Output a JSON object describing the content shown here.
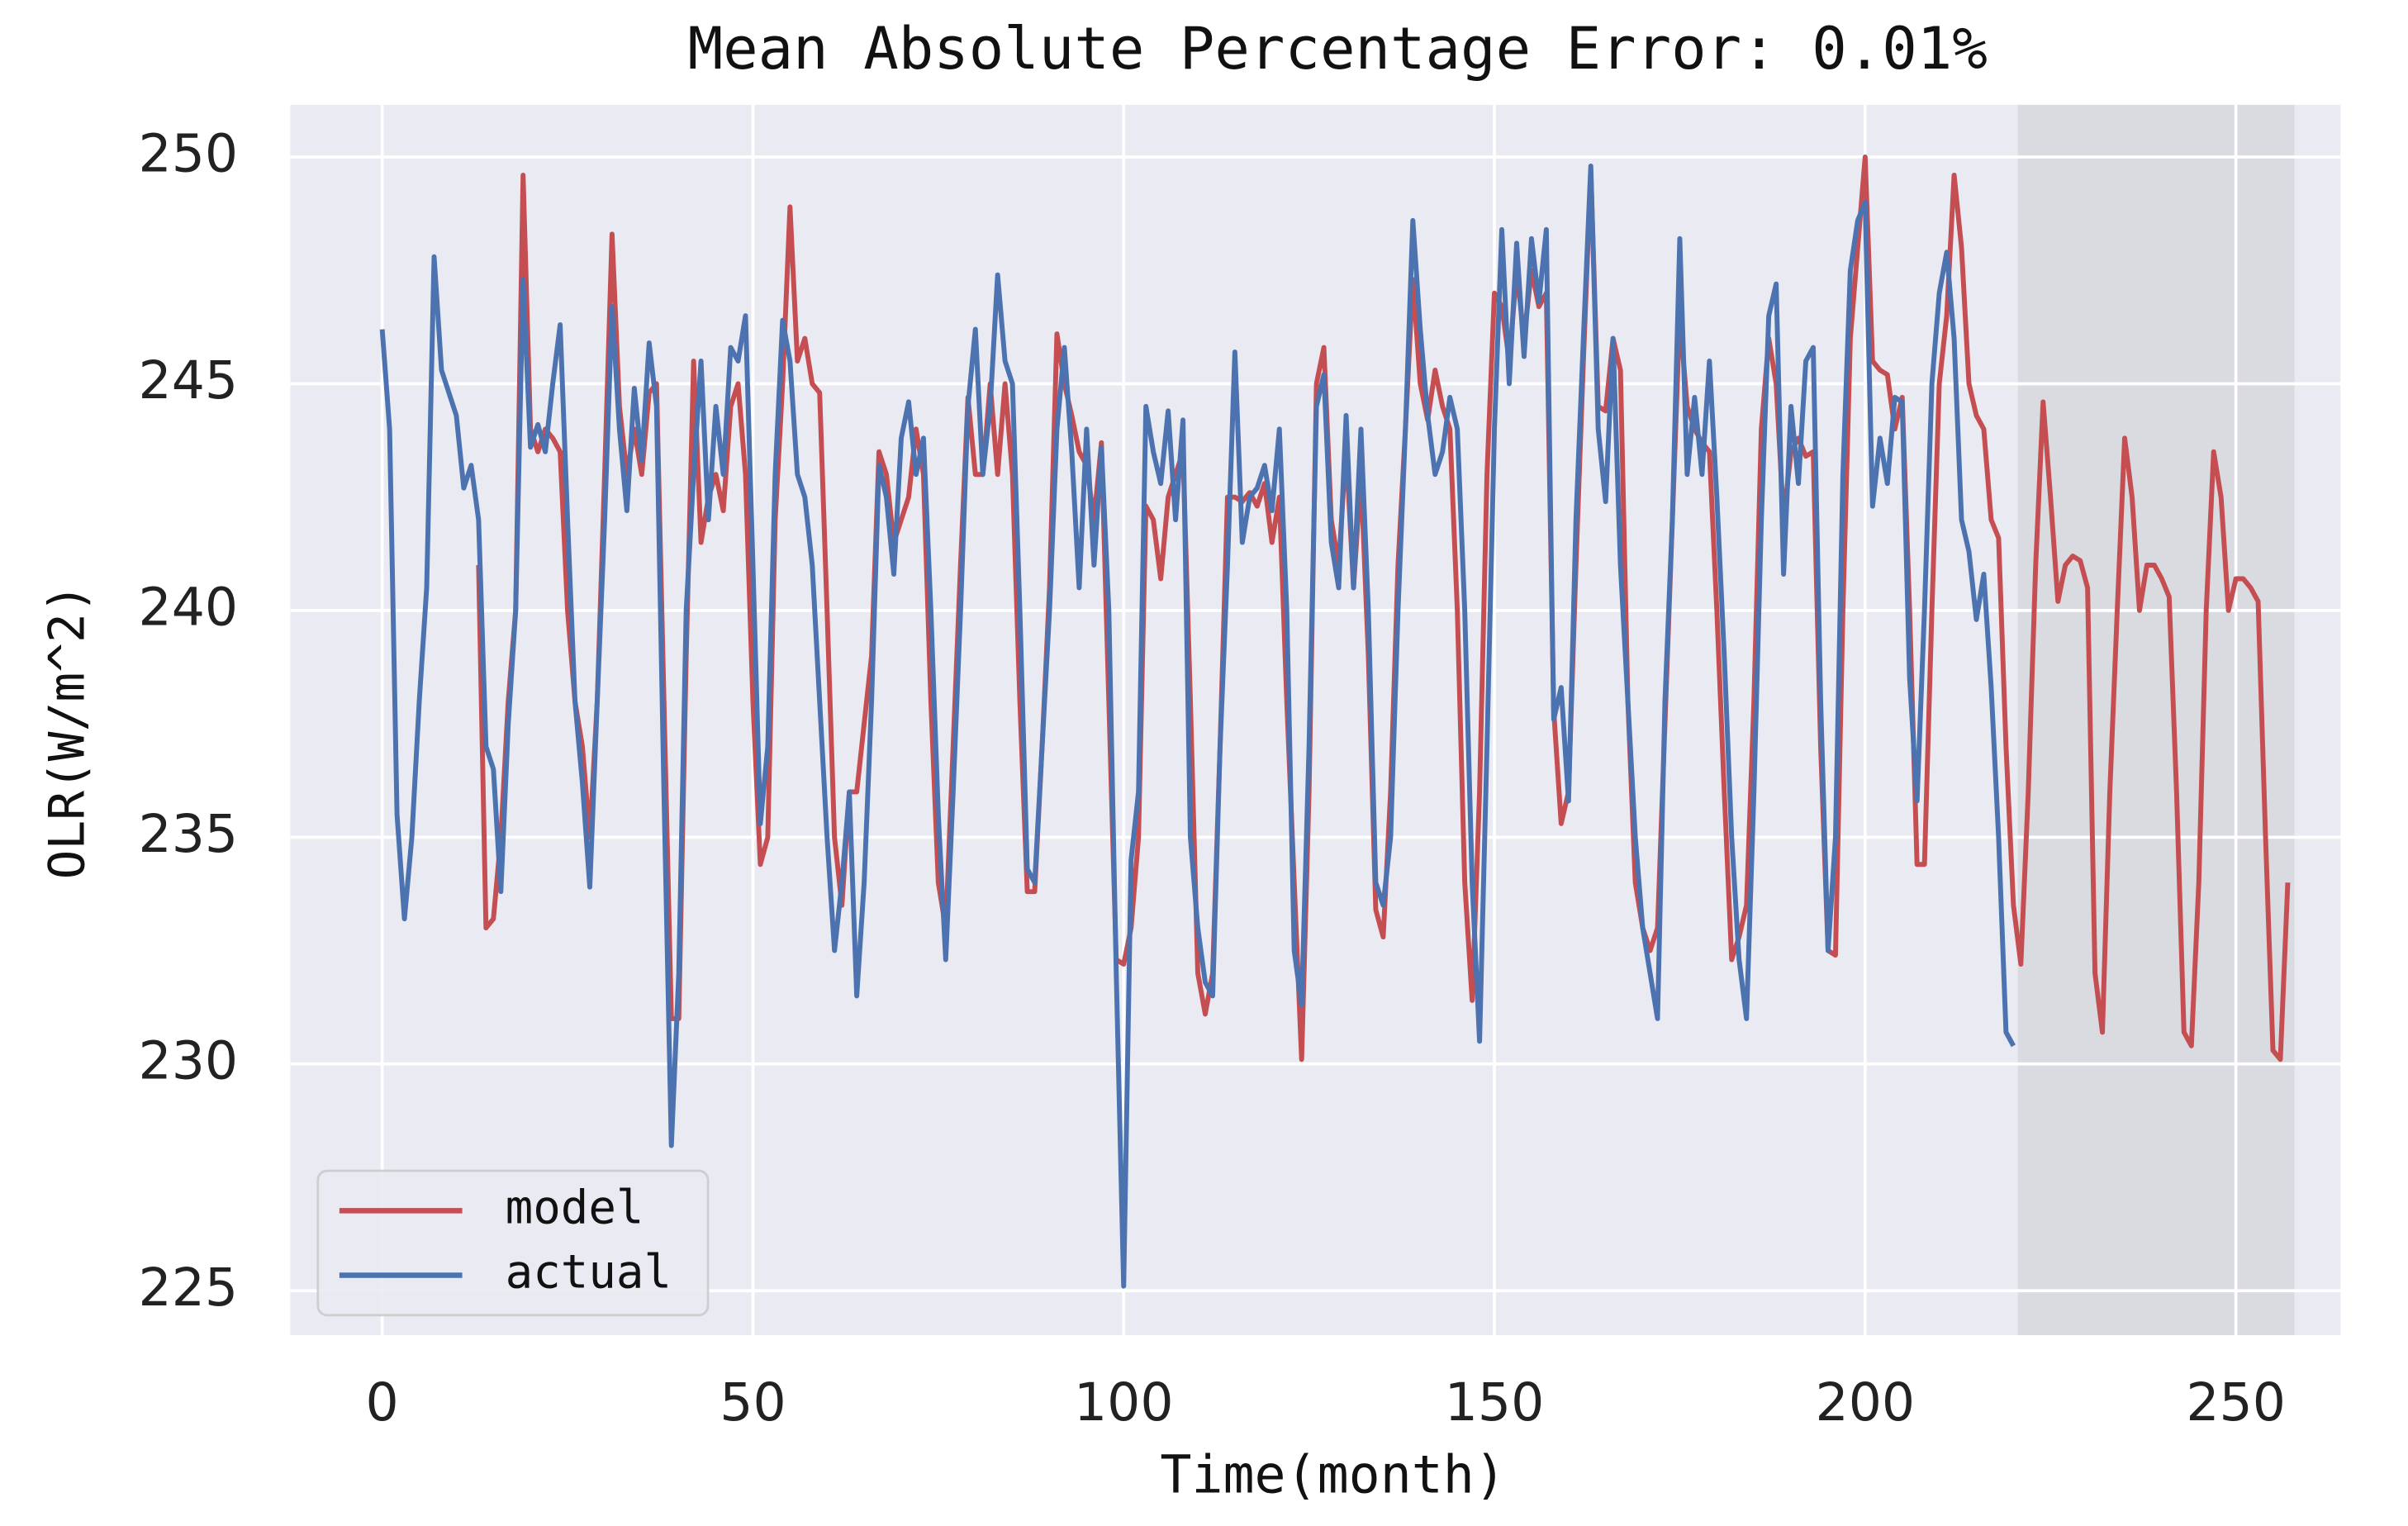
{
  "chart_data": {
    "type": "line",
    "title": "Mean Absolute Percentage Error: 0.01%",
    "xlabel": "Time(month)",
    "ylabel": "OLR(W/m^2)",
    "xlim": [
      -12.4,
      264.1
    ],
    "ylim": [
      224.02,
      251.15
    ],
    "xticks": [
      0,
      50,
      100,
      150,
      200,
      250
    ],
    "yticks": [
      225,
      230,
      235,
      240,
      245,
      250
    ],
    "grid": true,
    "legend": "lower left",
    "shaded_region": [
      220.6,
      257.9
    ],
    "x": [
      0,
      1,
      2,
      3,
      4,
      5,
      6,
      7,
      8,
      9,
      10,
      11,
      12,
      13,
      14,
      15,
      16,
      17,
      18,
      19,
      20,
      21,
      22,
      23,
      24,
      25,
      26,
      27,
      28,
      29,
      30,
      31,
      32,
      33,
      34,
      35,
      36,
      37,
      38,
      39,
      40,
      41,
      42,
      43,
      44,
      45,
      46,
      47,
      48,
      49,
      50,
      51,
      52,
      53,
      54,
      55,
      56,
      57,
      58,
      59,
      60,
      61,
      62,
      63,
      64,
      65,
      66,
      67,
      68,
      69,
      70,
      71,
      72,
      73,
      74,
      75,
      76,
      77,
      78,
      79,
      80,
      81,
      82,
      83,
      84,
      85,
      86,
      87,
      88,
      89,
      90,
      91,
      92,
      93,
      94,
      95,
      96,
      97,
      98,
      99,
      100,
      101,
      102,
      103,
      104,
      105,
      106,
      107,
      108,
      109,
      110,
      111,
      112,
      113,
      114,
      115,
      116,
      117,
      118,
      119,
      120,
      121,
      122,
      123,
      124,
      125,
      126,
      127,
      128,
      129,
      130,
      131,
      132,
      133,
      134,
      135,
      136,
      137,
      138,
      139,
      140,
      141,
      142,
      143,
      144,
      145,
      146,
      147,
      148,
      149,
      150,
      151,
      152,
      153,
      154,
      155,
      156,
      157,
      158,
      159,
      160,
      161,
      162,
      163,
      164,
      165,
      166,
      167,
      168,
      169,
      170,
      171,
      172,
      173,
      174,
      175,
      176,
      177,
      178,
      179,
      180,
      181,
      182,
      183,
      184,
      185,
      186,
      187,
      188,
      189,
      190,
      191,
      192,
      193,
      194,
      195,
      196,
      197,
      198,
      199,
      200,
      201,
      202,
      203,
      204,
      205,
      206,
      207,
      208,
      209,
      210,
      211,
      212,
      213,
      214,
      215,
      216,
      217,
      218,
      219,
      220,
      221,
      222,
      223,
      224,
      225,
      226,
      227,
      228,
      229,
      230,
      231,
      232,
      233,
      234,
      235,
      236,
      237,
      238,
      239,
      240,
      241,
      242,
      243,
      244,
      245,
      246,
      247,
      248,
      249,
      250,
      251,
      252,
      253,
      254,
      255,
      256,
      257
    ],
    "series": [
      {
        "name": "model",
        "color": "#c44e52",
        "values": [
          null,
          null,
          null,
          null,
          null,
          null,
          null,
          null,
          null,
          null,
          null,
          null,
          null,
          241,
          233,
          233.2,
          235,
          238,
          240,
          249.6,
          244,
          243.5,
          244,
          243.8,
          243.5,
          240,
          238,
          237,
          235,
          238,
          243,
          248.3,
          244.5,
          243,
          244,
          243,
          244.8,
          245,
          238,
          231,
          231,
          239,
          245.5,
          241.5,
          242.5,
          243,
          242.2,
          244.5,
          245,
          243,
          238,
          234.4,
          235,
          242,
          245,
          248.9,
          245.5,
          246,
          245,
          244.8,
          240,
          235,
          233.5,
          236,
          236,
          237.5,
          239,
          243.5,
          243,
          241.5,
          242,
          242.5,
          244,
          243,
          238,
          234,
          233,
          237,
          241,
          244.7,
          243,
          243,
          245,
          243,
          245,
          243,
          238,
          233.8,
          233.8,
          237,
          240.5,
          246.1,
          245,
          244.3,
          243.5,
          243.2,
          242,
          243.7,
          238,
          232.3,
          232.2,
          233,
          235,
          242.3,
          242,
          240.7,
          242.5,
          243,
          243.5,
          238,
          232,
          231.1,
          232,
          237,
          242.5,
          242.5,
          242.4,
          242.6,
          242.3,
          242.8,
          241.5,
          242.5,
          238,
          234,
          230.1,
          236,
          245,
          245.8,
          242,
          241,
          243.6,
          240.5,
          243,
          239,
          233.4,
          232.8,
          236,
          241,
          244,
          247.3,
          245,
          244.2,
          245.3,
          244.5,
          244,
          240,
          234,
          231.4,
          236,
          243,
          247,
          246.7,
          245.5,
          247.5,
          246,
          247.5,
          246.7,
          247,
          237.8,
          235.3,
          236,
          241,
          245.5,
          249.7,
          244.5,
          244.4,
          246,
          245.3,
          238,
          234,
          233,
          232.5,
          233,
          237.5,
          242,
          246.5,
          244.5,
          244,
          243.7,
          243.5,
          240,
          236,
          232.3,
          232.8,
          233.5,
          238,
          244,
          246,
          245,
          242,
          243.5,
          243.8,
          243.4,
          243.5,
          237,
          232.5,
          232.4,
          240,
          246,
          248,
          250,
          245.5,
          245.3,
          245.2,
          244,
          244.7,
          240,
          234.4,
          234.4,
          240,
          245,
          246.5,
          249.6,
          248,
          245,
          244.3,
          244,
          242,
          241.6,
          237,
          233.5,
          232.2,
          236,
          241,
          244.6,
          242.5,
          240.2,
          241,
          241.2,
          241.1,
          240.5,
          232,
          230.7,
          236,
          240,
          243.8,
          242.5,
          240,
          241,
          241,
          240.7,
          240.3,
          236,
          230.7,
          230.4,
          234,
          240,
          243.5,
          242.5,
          240,
          240.7,
          240.7,
          240.5,
          240.2,
          235,
          230.3,
          230.1,
          234
        ]
      },
      {
        "name": "actual",
        "color": "#4c72b0",
        "values": [
          246.2,
          244,
          235.5,
          233.2,
          235,
          238,
          240.5,
          247.8,
          245.3,
          244.8,
          244.3,
          242.7,
          243.2,
          242,
          237,
          236.5,
          233.8,
          237.5,
          240,
          247.3,
          243.6,
          244.1,
          243.5,
          245,
          246.3,
          242,
          238,
          236.2,
          233.9,
          238,
          242,
          246.7,
          244,
          242.2,
          244.9,
          243.3,
          245.9,
          244.5,
          236,
          228.2,
          232,
          240,
          243,
          245.5,
          242,
          244.5,
          243,
          245.8,
          245.5,
          246.5,
          241,
          235.3,
          237,
          243,
          246.4,
          245.5,
          243,
          242.5,
          241,
          238,
          235,
          232.5,
          234,
          236,
          231.5,
          234,
          238,
          243.2,
          242.5,
          240.8,
          243.8,
          244.6,
          243,
          243.8,
          240,
          235.5,
          232.3,
          236,
          240,
          244.5,
          246.2,
          243,
          244.5,
          247.4,
          245.5,
          245,
          240,
          234.3,
          234,
          237,
          240,
          244,
          245.8,
          243.5,
          240.5,
          244,
          241,
          243.6,
          240,
          232,
          225.1,
          234.5,
          236,
          244.5,
          243.5,
          242.8,
          244.4,
          242,
          244.2,
          235,
          233,
          231.8,
          231.5,
          237,
          241,
          245.7,
          241.5,
          242.5,
          242.7,
          243.2,
          242.2,
          244,
          240,
          232.5,
          231.3,
          237,
          244.5,
          245.2,
          241.5,
          240.5,
          244.3,
          240.5,
          244,
          240,
          234,
          233.5,
          235,
          240,
          244,
          248.6,
          246.2,
          244.3,
          243,
          243.5,
          244.7,
          244,
          240,
          234,
          230.5,
          237,
          244,
          248.4,
          245,
          248.1,
          245.6,
          248.2,
          246.8,
          248.4,
          237.6,
          238.3,
          235.8,
          242,
          246,
          249.8,
          244,
          242.4,
          246,
          241,
          238,
          235,
          233,
          232,
          231,
          238,
          242,
          248.2,
          243,
          244.7,
          243,
          245.5,
          242.5,
          239,
          235,
          232.3,
          231,
          236,
          242,
          246.5,
          247.2,
          240.8,
          244.5,
          242.8,
          245.5,
          245.8,
          238,
          232.5,
          235,
          243,
          247.5,
          248.6,
          249,
          242.3,
          243.8,
          242.8,
          244.7,
          244.6,
          238.5,
          235.8,
          240,
          245,
          247,
          247.9,
          246,
          242,
          241.3,
          239.8,
          240.8,
          238.3,
          235,
          230.7,
          230.4,
          null,
          null,
          null,
          null,
          null,
          null,
          null,
          null,
          null,
          null,
          null,
          null,
          null,
          null,
          null,
          null,
          null,
          null,
          null,
          null,
          null,
          null,
          null,
          null,
          null,
          null,
          null,
          null,
          null,
          null,
          null,
          null,
          null,
          null,
          null,
          null,
          null
        ]
      }
    ]
  }
}
